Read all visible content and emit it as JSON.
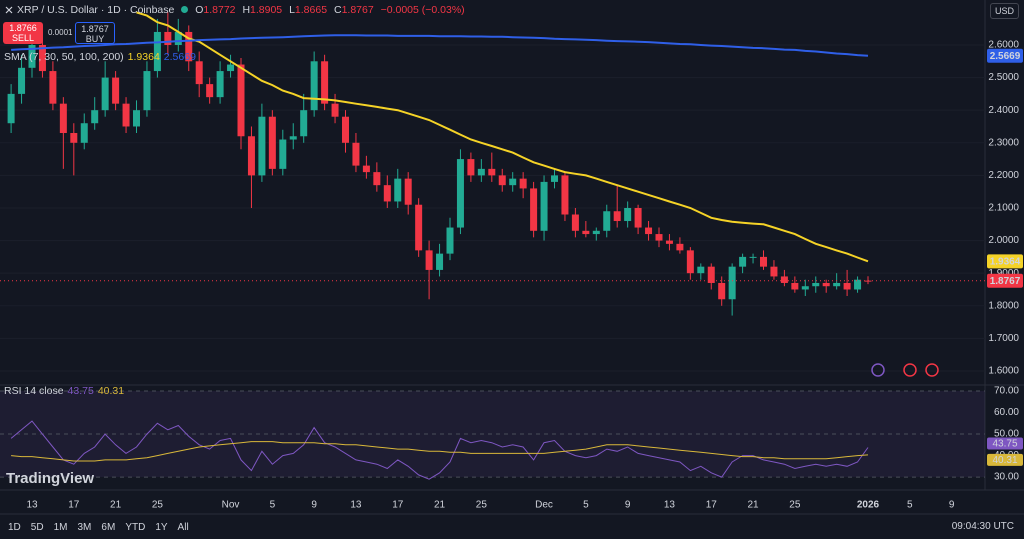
{
  "header": {
    "symbol": "XRP / U.S. Dollar · 1D · Coinbase",
    "ohlc_labels": [
      "O",
      "H",
      "L",
      "C"
    ],
    "change": "−0.0005 (−0.03%)",
    "sell_price": 1.8766,
    "sell_label": "SELL",
    "spread": 0.0001,
    "buy_price": 1.8767,
    "buy_label": "BUY",
    "indicator": "SMA (7, 30, 50, 100, 200)",
    "currency": "USD"
  },
  "toolbar": {
    "timeframes": [
      "1D",
      "5D",
      "1M",
      "3M",
      "6M",
      "YTD",
      "1Y",
      "All"
    ],
    "time": "09:04:30 UTC",
    "logo": "TradingView"
  },
  "chart_data": [
    {
      "type": "candlestick",
      "up_color": "#22ab94",
      "down_color": "#f23645",
      "grid": true,
      "categories": [
        null,
        null,
        "13",
        null,
        null,
        null,
        "17",
        null,
        null,
        null,
        "21",
        null,
        null,
        null,
        "25",
        null,
        null,
        null,
        null,
        null,
        null,
        "Nov",
        null,
        null,
        null,
        "5",
        null,
        null,
        null,
        "9",
        null,
        null,
        null,
        "13",
        null,
        null,
        null,
        "17",
        null,
        null,
        null,
        "21",
        null,
        null,
        null,
        "25",
        null,
        null,
        null,
        null,
        null,
        "Dec",
        null,
        null,
        null,
        "5",
        null,
        null,
        null,
        "9",
        null,
        null,
        null,
        "13",
        null,
        null,
        null,
        "17",
        null,
        null,
        null,
        "21",
        null,
        null,
        null,
        "25",
        null,
        null,
        null,
        null,
        null,
        null,
        "2026",
        null,
        null,
        null,
        "5",
        null,
        null,
        null,
        "9"
      ],
      "open": [
        2.36,
        2.45,
        2.53,
        2.6,
        2.52,
        2.42,
        2.33,
        2.3,
        2.36,
        2.4,
        2.5,
        2.42,
        2.35,
        2.4,
        2.52,
        2.64,
        2.6,
        2.64,
        2.55,
        2.48,
        2.44,
        2.52,
        2.54,
        2.32,
        2.2,
        2.38,
        2.22,
        2.31,
        2.32,
        2.4,
        2.55,
        2.42,
        2.38,
        2.3,
        2.23,
        2.21,
        2.17,
        2.12,
        2.19,
        2.11,
        1.97,
        1.91,
        1.96,
        2.04,
        2.25,
        2.2,
        2.22,
        2.2,
        2.17,
        2.19,
        2.16,
        2.03,
        2.18,
        2.2,
        2.08,
        2.03,
        2.02,
        2.03,
        2.09,
        2.06,
        2.1,
        2.04,
        2.02,
        2.0,
        1.99,
        1.97,
        1.9,
        1.92,
        1.87,
        1.82,
        1.92,
        1.95,
        1.95,
        1.92,
        1.89,
        1.87,
        1.85,
        1.86,
        1.87,
        1.86,
        1.87,
        1.85,
        1.8772,
        null,
        null,
        null,
        null,
        null,
        null,
        null,
        null
      ],
      "high": [
        2.48,
        2.57,
        2.65,
        2.62,
        2.55,
        2.44,
        2.36,
        2.39,
        2.44,
        2.55,
        2.52,
        2.44,
        2.43,
        2.55,
        2.68,
        2.7,
        2.68,
        2.66,
        2.58,
        2.5,
        2.55,
        2.57,
        2.56,
        2.35,
        2.42,
        2.4,
        2.34,
        2.36,
        2.45,
        2.58,
        2.57,
        2.45,
        2.4,
        2.33,
        2.26,
        2.24,
        2.2,
        2.22,
        2.21,
        2.13,
        2.0,
        1.99,
        2.07,
        2.28,
        2.27,
        2.25,
        2.27,
        2.22,
        2.21,
        2.21,
        2.18,
        2.2,
        2.22,
        2.21,
        2.1,
        2.06,
        2.04,
        2.11,
        2.17,
        2.12,
        2.11,
        2.06,
        2.04,
        2.02,
        2.01,
        1.98,
        1.93,
        1.93,
        1.89,
        1.93,
        1.96,
        1.96,
        1.97,
        1.94,
        1.91,
        1.89,
        1.88,
        1.89,
        1.88,
        1.9,
        1.91,
        1.89,
        1.8905,
        null,
        null,
        null,
        null,
        null,
        null,
        null,
        null
      ],
      "low": [
        2.33,
        2.42,
        2.5,
        2.5,
        2.4,
        2.22,
        2.2,
        2.28,
        2.34,
        2.38,
        2.4,
        2.33,
        2.33,
        2.38,
        2.5,
        2.57,
        2.58,
        2.52,
        2.44,
        2.42,
        2.42,
        2.5,
        2.28,
        2.1,
        2.18,
        2.2,
        2.2,
        2.28,
        2.3,
        2.38,
        2.4,
        2.36,
        2.27,
        2.21,
        2.19,
        2.15,
        2.1,
        2.1,
        2.08,
        1.95,
        1.82,
        1.89,
        1.94,
        2.02,
        2.18,
        2.18,
        2.18,
        2.15,
        2.15,
        2.13,
        2.01,
        2.0,
        2.16,
        2.06,
        2.01,
        2.01,
        2.0,
        2.01,
        2.04,
        2.04,
        2.02,
        2.0,
        1.98,
        1.97,
        1.96,
        1.88,
        1.88,
        1.85,
        1.8,
        1.77,
        1.9,
        1.93,
        1.91,
        1.88,
        1.86,
        1.84,
        1.83,
        1.84,
        1.84,
        1.85,
        1.83,
        1.84,
        1.8665,
        null,
        null,
        null,
        null,
        null,
        null,
        null,
        null
      ],
      "close": [
        2.45,
        2.53,
        2.6,
        2.52,
        2.42,
        2.33,
        2.3,
        2.36,
        2.4,
        2.5,
        2.42,
        2.35,
        2.4,
        2.52,
        2.64,
        2.6,
        2.64,
        2.55,
        2.48,
        2.44,
        2.52,
        2.54,
        2.32,
        2.2,
        2.38,
        2.22,
        2.31,
        2.32,
        2.4,
        2.55,
        2.42,
        2.38,
        2.3,
        2.23,
        2.21,
        2.17,
        2.12,
        2.19,
        2.11,
        1.97,
        1.91,
        1.96,
        2.04,
        2.25,
        2.2,
        2.22,
        2.2,
        2.17,
        2.19,
        2.16,
        2.03,
        2.18,
        2.2,
        2.08,
        2.03,
        2.02,
        2.03,
        2.09,
        2.06,
        2.1,
        2.04,
        2.02,
        2.0,
        1.99,
        1.97,
        1.9,
        1.92,
        1.87,
        1.82,
        1.92,
        1.95,
        1.95,
        1.92,
        1.89,
        1.87,
        1.85,
        1.86,
        1.87,
        1.86,
        1.87,
        1.85,
        1.88,
        1.8767,
        null,
        null,
        null,
        null,
        null,
        null,
        null,
        null
      ],
      "series": [
        {
          "color": "#f5d327",
          "values": [
            null,
            null,
            null,
            null,
            null,
            null,
            null,
            null,
            null,
            null,
            null,
            null,
            2.7,
            2.69,
            2.67,
            2.66,
            2.64,
            2.62,
            2.61,
            2.59,
            2.57,
            2.55,
            2.53,
            2.51,
            2.49,
            2.477,
            2.46,
            2.45,
            2.437,
            2.435,
            2.433,
            2.43,
            2.425,
            2.42,
            2.415,
            2.41,
            2.405,
            2.4,
            2.39,
            2.38,
            2.37,
            2.355,
            2.34,
            2.325,
            2.31,
            2.3,
            2.29,
            2.28,
            2.27,
            2.255,
            2.24,
            2.23,
            2.22,
            2.21,
            2.205,
            2.2,
            2.19,
            2.18,
            2.17,
            2.16,
            2.15,
            2.14,
            2.13,
            2.12,
            2.11,
            2.1,
            2.085,
            2.07,
            2.063,
            2.058,
            2.055,
            2.052,
            2.05,
            2.04,
            2.03,
            2.02,
            2.005,
            1.99,
            1.98,
            1.97,
            1.96,
            1.948,
            1.9364,
            null,
            null,
            null,
            null,
            null,
            null,
            null,
            null
          ]
        },
        {
          "color": "#2f5fe8",
          "values": [
            2.585,
            2.587,
            2.588,
            2.59,
            2.592,
            2.593,
            2.595,
            2.597,
            2.598,
            2.6,
            2.602,
            2.603,
            2.605,
            2.607,
            2.608,
            2.61,
            2.612,
            2.613,
            2.615,
            2.616,
            2.617,
            2.618,
            2.62,
            2.621,
            2.622,
            2.623,
            2.624,
            2.625,
            2.627,
            2.628,
            2.629,
            2.63,
            2.63,
            2.63,
            2.629,
            2.629,
            2.629,
            2.628,
            2.628,
            2.628,
            2.628,
            2.627,
            2.627,
            2.627,
            2.626,
            2.626,
            2.625,
            2.625,
            2.624,
            2.623,
            2.622,
            2.621,
            2.619,
            2.618,
            2.617,
            2.616,
            2.615,
            2.613,
            2.612,
            2.611,
            2.61,
            2.609,
            2.607,
            2.605,
            2.603,
            2.602,
            2.6,
            2.598,
            2.597,
            2.595,
            2.593,
            2.591,
            2.59,
            2.588,
            2.586,
            2.585,
            2.582,
            2.58,
            2.577,
            2.574,
            2.572,
            2.569,
            2.5669,
            null,
            null,
            null,
            null,
            null,
            null,
            null,
            null
          ]
        }
      ],
      "ylim": [
        1.557,
        2.738
      ],
      "yticks": [
        {
          "value": 2.6,
          "label": "2.6000"
        },
        {
          "value": 2.5,
          "label": "2.5000"
        },
        {
          "value": 2.4,
          "label": "2.4000"
        },
        {
          "value": 2.3,
          "label": "2.3000"
        },
        {
          "value": 2.2,
          "label": "2.2000"
        },
        {
          "value": 2.1,
          "label": "2.1000"
        },
        {
          "value": 2.0,
          "label": "2.0000"
        },
        {
          "value": 1.9,
          "label": "1.9000"
        },
        {
          "value": 1.8,
          "label": "1.8000"
        },
        {
          "value": 1.7,
          "label": "1.7000"
        },
        {
          "value": 1.6,
          "label": "1.6000"
        }
      ]
    },
    {
      "type": "line",
      "title": "RSI 14 close",
      "levels": [
        70,
        50,
        30
      ],
      "series": [
        {
          "color": "#7e57c2",
          "values": [
            48,
            52,
            56,
            50,
            44,
            38,
            36,
            41,
            44,
            50,
            45,
            41,
            44,
            50,
            55,
            52,
            54,
            49,
            45,
            43,
            47,
            48,
            38,
            33,
            42,
            36,
            40,
            41,
            45,
            53,
            46,
            44,
            41,
            38,
            37,
            36,
            34,
            38,
            35,
            31,
            29,
            32,
            37,
            48,
            46,
            47,
            46,
            44,
            45,
            44,
            38,
            46,
            47,
            42,
            40,
            39,
            40,
            43,
            42,
            44,
            41,
            40,
            39,
            38,
            37,
            33,
            35,
            32,
            30,
            37,
            40,
            40,
            38,
            37,
            36,
            34,
            35,
            36,
            35,
            36,
            35,
            37,
            43.75,
            null,
            null,
            null,
            null,
            null,
            null,
            null,
            null
          ]
        },
        {
          "color": "#d9b83a",
          "values": [
            40,
            39.5,
            39.5,
            39,
            38.5,
            38,
            37.5,
            37.5,
            37.5,
            38,
            38,
            38,
            38.5,
            39,
            40,
            41,
            42,
            43,
            44,
            44.5,
            45,
            45.5,
            46,
            46.5,
            46.5,
            46.5,
            46,
            46,
            46,
            46,
            45.5,
            45.5,
            45,
            45,
            44.5,
            44,
            43.5,
            43,
            43,
            42.5,
            42,
            42,
            41.5,
            41.5,
            41,
            41,
            41,
            41,
            41,
            41,
            41,
            41,
            41.5,
            42,
            42.5,
            43,
            44,
            45,
            45,
            45,
            44.5,
            44,
            43.5,
            43,
            42.5,
            42,
            41.5,
            41,
            40.5,
            40,
            39.5,
            39.5,
            39,
            39,
            38.5,
            38.5,
            38.5,
            38.5,
            38.5,
            39,
            39.5,
            40,
            40.31,
            null,
            null,
            null,
            null,
            null,
            null,
            null,
            null
          ]
        }
      ],
      "ylim": [
        24,
        72.8
      ],
      "yticks": [
        {
          "value": 70,
          "label": "70.00"
        },
        {
          "value": 60,
          "label": "60.00"
        },
        {
          "value": 50,
          "label": "50.00"
        },
        {
          "value": 40,
          "label": "40.00"
        },
        {
          "value": 30,
          "label": "30.00"
        }
      ]
    }
  ]
}
